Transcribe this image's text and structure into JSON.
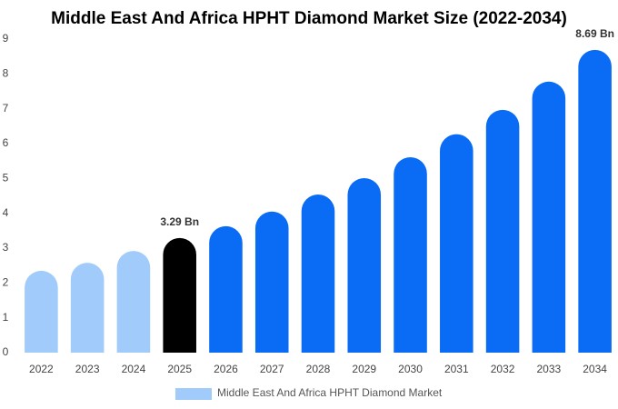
{
  "chart_data": {
    "type": "bar",
    "title": "Middle East And Africa HPHT Diamond Market Size (2022-2034)",
    "categories": [
      "2022",
      "2023",
      "2024",
      "2025",
      "2026",
      "2027",
      "2028",
      "2029",
      "2030",
      "2031",
      "2032",
      "2033",
      "2034"
    ],
    "series": [
      {
        "name": "Middle East And Africa HPHT Diamond Market",
        "color": "#a0cbfb",
        "values": [
          2.35,
          2.58,
          2.92,
          3.29,
          3.63,
          4.05,
          4.54,
          5.01,
          5.61,
          6.27,
          6.97,
          7.78,
          8.69
        ],
        "value_labels": [
          null,
          null,
          null,
          "3.29 Bn",
          null,
          null,
          null,
          null,
          null,
          null,
          null,
          null,
          "8.69 Bn"
        ],
        "colors": [
          "#a0cbfb",
          "#a0cbfb",
          "#a0cbfb",
          "#000000",
          "#0a6cf5",
          "#0a6cf5",
          "#0a6cf5",
          "#0a6cf5",
          "#0a6cf5",
          "#0a6cf5",
          "#0a6cf5",
          "#0a6cf5",
          "#0a6cf5"
        ]
      }
    ],
    "ylim": [
      0,
      9
    ],
    "yticks": [
      0,
      1,
      2,
      3,
      4,
      5,
      6,
      7,
      8,
      9
    ],
    "grid": false
  }
}
